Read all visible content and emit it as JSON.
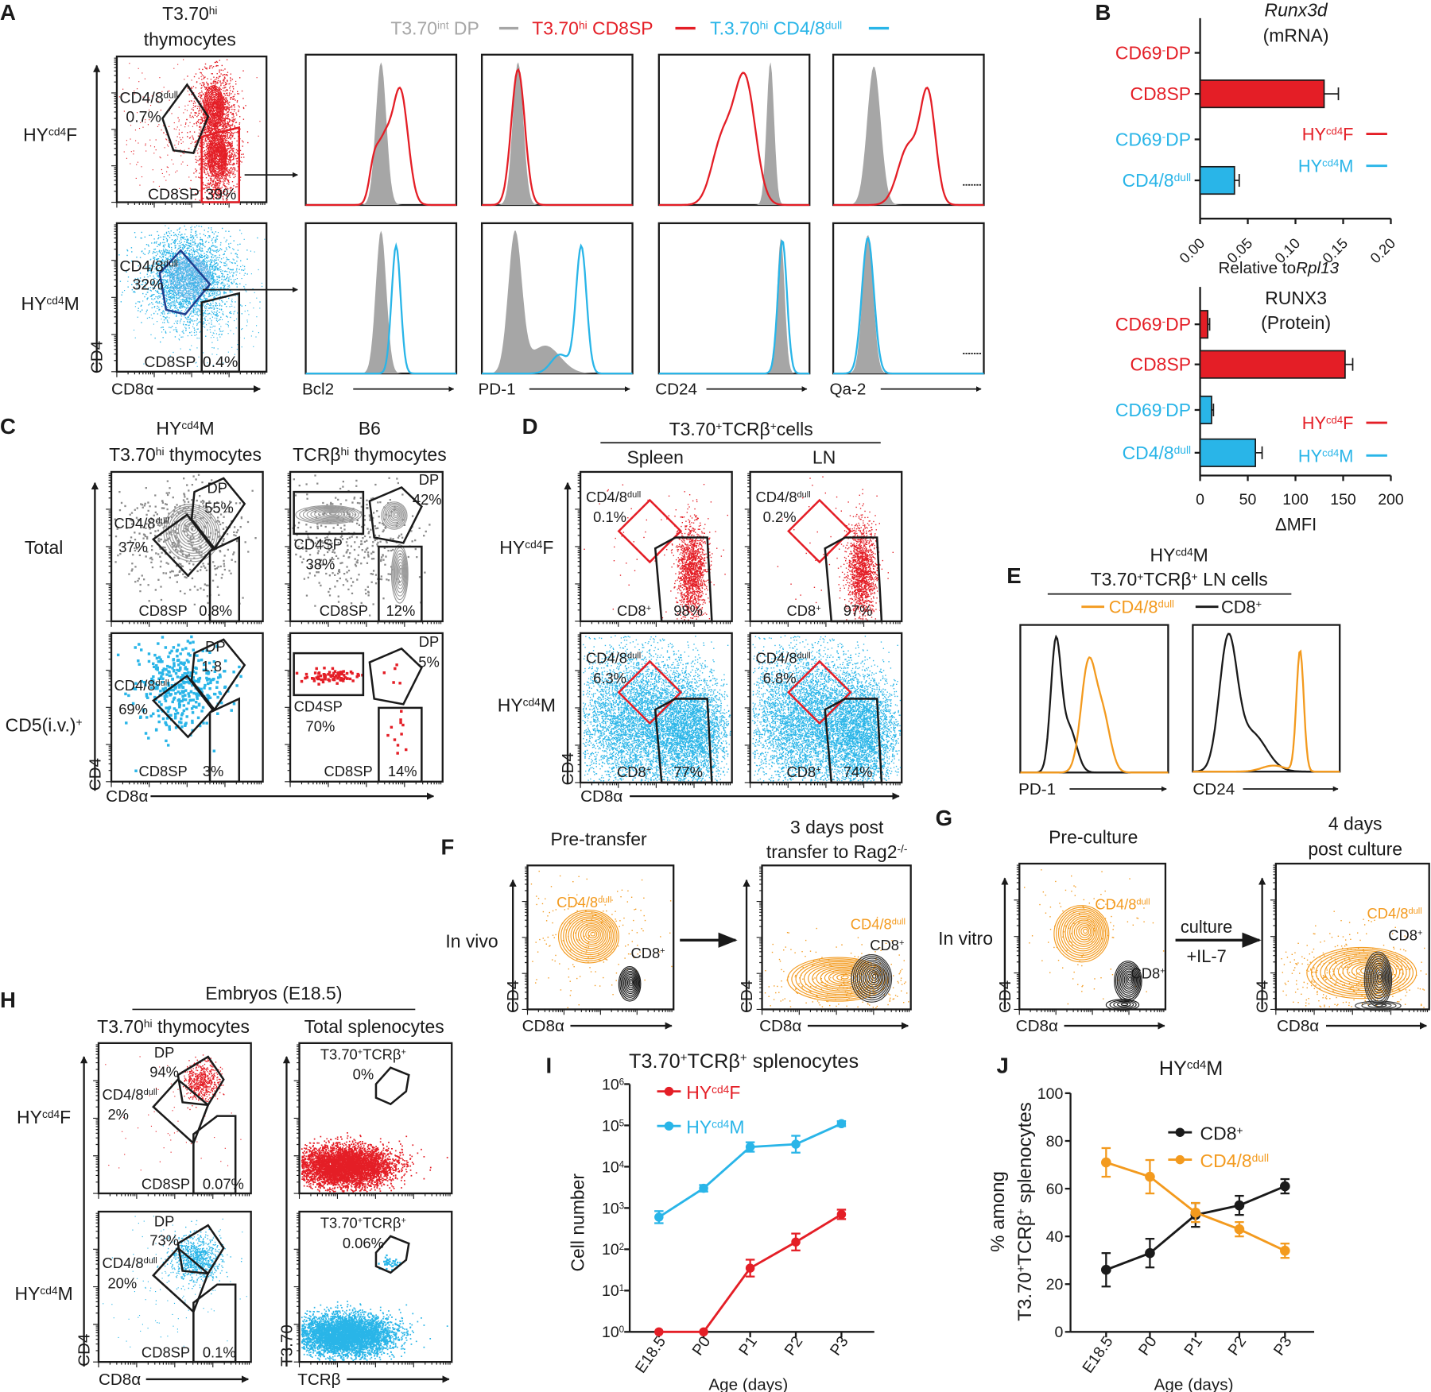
{
  "colors": {
    "red": "#e41e26",
    "cyan": "#29b5e8",
    "orange": "#f39a1e",
    "gray": "#a6a6a6",
    "black": "#1a1a1a",
    "navy": "#1f3f8f"
  },
  "figure": {
    "A": {
      "letter": "A",
      "title": [
        "T3.70",
        "hi"
      ],
      "title2": "thymocytes",
      "legend": [
        [
          "T3.70",
          "int",
          " DP"
        ],
        [
          "T3.70",
          "hi",
          " CD8SP"
        ],
        [
          "T.3.70",
          "hi",
          " CD4/8",
          "dull"
        ]
      ],
      "rows": [
        [
          "HY",
          "cd4",
          "F"
        ],
        [
          "HY",
          "cd4",
          "M"
        ]
      ],
      "gates_f": {
        "dull": [
          "CD4/8",
          "dull"
        ],
        "dull_pct": "0.7%",
        "sp": "CD8SP",
        "sp_pct": "39%"
      },
      "gates_m": {
        "dull": [
          "CD4/8",
          "dull"
        ],
        "dull_pct": "32%",
        "sp": "CD8SP",
        "sp_pct": "0.4%"
      },
      "y_axis": "CD4",
      "x_axis": "CD8α",
      "markers": [
        "Bcl2",
        "PD-1",
        "CD24",
        "Qa-2"
      ]
    },
    "B": {
      "letter": "B"
    },
    "C": {
      "letter": "C",
      "head1": [
        "HY",
        "cd4",
        "M"
      ],
      "head1b": [
        "T3.70",
        "hi",
        " thymocytes"
      ],
      "head2": "B6",
      "head2b": [
        "TCRβ",
        "hi",
        " thymocytes"
      ],
      "rows": [
        "Total",
        [
          "CD5(i.v.)",
          "+"
        ]
      ],
      "tl": {
        "dp": "DP",
        "dp_pct": "55%",
        "dull": [
          "CD4/8",
          "dull"
        ],
        "dull_pct": "37%",
        "sp": "CD8SP",
        "sp_pct": "0.8%"
      },
      "tr": {
        "dp": "DP",
        "dp_pct": "42%",
        "cd4": "CD4SP",
        "cd4_pct": "38%",
        "sp": "CD8SP",
        "sp_pct": "12%"
      },
      "bl": {
        "dp": "DP",
        "dp_pct": "1.8",
        "dull": [
          "CD4/8",
          "dull"
        ],
        "dull_pct": "69%",
        "sp": "CD8SP",
        "sp_pct": "3%"
      },
      "br": {
        "dp": "DP",
        "dp_pct": "5%",
        "cd4": "CD4SP",
        "cd4_pct": "70%",
        "sp": "CD8SP",
        "sp_pct": "14%"
      },
      "y_axis": "CD4",
      "x_axis": "CD8α"
    },
    "D": {
      "letter": "D",
      "head": [
        "T3.70",
        "+",
        "TCRβ",
        "+",
        "cells"
      ],
      "cols": [
        "Spleen",
        "LN"
      ],
      "rows": [
        [
          "HY",
          "cd4",
          "F"
        ],
        [
          "HY",
          "cd4",
          "M"
        ]
      ],
      "dull": [
        "CD4/8",
        "dull"
      ],
      "cd8": [
        "CD8",
        "+"
      ],
      "pcts": {
        "f_spleen_dull": "0.1%",
        "f_spleen_cd8": "98%",
        "f_ln_dull": "0.2%",
        "f_ln_cd8": "97%",
        "m_spleen_dull": "6.3%",
        "m_spleen_cd8": "77%",
        "m_ln_dull": "6.8%",
        "m_ln_cd8": "74%"
      },
      "y_axis": "CD4",
      "x_axis": "CD8α"
    },
    "E": {
      "letter": "E",
      "head": [
        "HY",
        "cd4",
        "M"
      ],
      "head2": [
        "T3.70",
        "+",
        "TCRβ",
        "+",
        " LN cells"
      ],
      "legend": [
        [
          "CD4/8",
          "dull"
        ],
        [
          "CD8",
          "+"
        ]
      ],
      "markers": [
        "PD-1",
        "CD24"
      ]
    },
    "F": {
      "letter": "F",
      "pre": "Pre-transfer",
      "post1": "3 days post",
      "post2": [
        "transfer to Rag2",
        "-/-"
      ],
      "row": "In vivo",
      "dull": [
        "CD4/8",
        "dull"
      ],
      "cd8": [
        "CD8",
        "+"
      ],
      "y_axis": "CD4",
      "x_axis": "CD8α"
    },
    "G": {
      "letter": "G",
      "pre": "Pre-culture",
      "post1": "4 days",
      "post2": "post culture",
      "row": "In vitro",
      "arrow1": "culture",
      "arrow2": "+IL-7",
      "dull": [
        "CD4/8",
        "dull"
      ],
      "cd8": [
        "CD8",
        "+"
      ],
      "y_axis": "CD4",
      "x_axis": "CD8α"
    },
    "H": {
      "letter": "H",
      "head": "Embryos (E18.5)",
      "col1": [
        "T3.70",
        "hi",
        " thymocytes"
      ],
      "col2": "Total splenocytes",
      "rows": [
        [
          "HY",
          "cd4",
          "F"
        ],
        [
          "HY",
          "cd4",
          "M"
        ]
      ],
      "f": {
        "dp": "DP",
        "dp_pct": "94%",
        "dull": [
          "CD4/8",
          "dull"
        ],
        "dull_pct": "2%",
        "sp": "CD8SP",
        "sp_pct": "0.07%",
        "gate": [
          "T3.70",
          "+",
          "TCRβ",
          "+"
        ],
        "gate_pct": "0%"
      },
      "m": {
        "dp": "DP",
        "dp_pct": "73%",
        "dull": [
          "CD4/8",
          "dull"
        ],
        "dull_pct": "20%",
        "sp": "CD8SP",
        "sp_pct": "0.1%",
        "gate": [
          "T3.70",
          "+",
          "TCRβ",
          "+"
        ],
        "gate_pct": "0.06%"
      },
      "y_axis": "CD4",
      "x_axis": "CD8α",
      "y_axis2": "T3.70",
      "x_axis2": "TCRβ"
    },
    "I": {
      "letter": "I"
    },
    "J": {
      "letter": "J"
    }
  },
  "chart_data": [
    {
      "id": "B-mRNA",
      "type": "bar",
      "orientation": "horizontal",
      "title": "Runx3d",
      "title2": "(mRNA)",
      "categories": [
        [
          "CD69",
          "-",
          "DP"
        ],
        "CD8SP",
        [
          "CD69",
          "-",
          "DP"
        ],
        [
          "CD4/8",
          "dull"
        ]
      ],
      "category_colors": [
        "#e41e26",
        "#e41e26",
        "#29b5e8",
        "#29b5e8"
      ],
      "values": [
        0.0,
        0.13,
        0.0,
        0.036
      ],
      "errors": [
        0.0,
        0.015,
        0.0,
        0.005
      ],
      "xlabel": "Relative to ",
      "xlabel_italic": "Rpl13",
      "xlim": [
        0,
        0.2
      ],
      "xticks": [
        "0.00",
        "0.05",
        "0.10",
        "0.15",
        "0.20"
      ],
      "legend": [
        {
          "label": [
            "HY",
            "cd4",
            "F"
          ],
          "color": "#e41e26"
        },
        {
          "label": [
            "HY",
            "cd4",
            "M"
          ],
          "color": "#29b5e8"
        }
      ]
    },
    {
      "id": "B-protein",
      "type": "bar",
      "orientation": "horizontal",
      "title": "RUNX3",
      "title2": "(Protein)",
      "categories": [
        [
          "CD69",
          "-",
          "DP"
        ],
        "CD8SP",
        [
          "CD69",
          "-",
          "DP"
        ],
        [
          "CD4/8",
          "dull"
        ]
      ],
      "category_colors": [
        "#e41e26",
        "#e41e26",
        "#29b5e8",
        "#29b5e8"
      ],
      "values": [
        8,
        152,
        12,
        58
      ],
      "errors": [
        2,
        8,
        2,
        7
      ],
      "xlabel": "ΔMFI",
      "xlim": [
        0,
        200
      ],
      "xticks": [
        "0",
        "50",
        "100",
        "150",
        "200"
      ],
      "legend": [
        {
          "label": [
            "HY",
            "cd4",
            "F"
          ],
          "color": "#e41e26"
        },
        {
          "label": [
            "HY",
            "cd4",
            "M"
          ],
          "color": "#29b5e8"
        }
      ]
    },
    {
      "id": "I",
      "type": "line",
      "yscale": "log",
      "title": [
        "T3.70",
        "+",
        "TCRβ",
        "+",
        " splenocytes"
      ],
      "categories": [
        "E18.5",
        "P0",
        "P1",
        "P2",
        "P3"
      ],
      "xlabel": "Age (days)",
      "ylabel": "Cell number",
      "ylim": [
        1,
        1000000
      ],
      "yticks": [
        [
          "10",
          "0"
        ],
        [
          "10",
          "1"
        ],
        [
          "10",
          "2"
        ],
        [
          "10",
          "3"
        ],
        [
          "10",
          "4"
        ],
        [
          "10",
          "5"
        ],
        [
          "10",
          "6"
        ]
      ],
      "series": [
        {
          "name": [
            "HY",
            "cd4",
            "F"
          ],
          "color": "#e41e26",
          "values": [
            1,
            1,
            35,
            150,
            700
          ],
          "err_factor": [
            1,
            1,
            1.6,
            1.6,
            1.3
          ]
        },
        {
          "name": [
            "HY",
            "cd4",
            "M"
          ],
          "color": "#29b5e8",
          "values": [
            600,
            3000,
            30000,
            35000,
            110000
          ],
          "err_factor": [
            1.4,
            1.2,
            1.3,
            1.6,
            1.15
          ]
        }
      ]
    },
    {
      "id": "J",
      "type": "line",
      "title": [
        "HY",
        "cd4",
        "M"
      ],
      "categories": [
        "E18.5",
        "P0",
        "P1",
        "P2",
        "P3"
      ],
      "xlabel": "Age (days)",
      "ylabel": "% among",
      "ylabel2": [
        "T3.70",
        "+",
        "TCRβ",
        "+",
        " splenocytes"
      ],
      "ylim": [
        0,
        100
      ],
      "yticks": [
        "0",
        "20",
        "40",
        "60",
        "80",
        "100"
      ],
      "series": [
        {
          "name": [
            "CD8",
            "+"
          ],
          "color": "#1a1a1a",
          "values": [
            26,
            33,
            49,
            53,
            61
          ],
          "errors": [
            7,
            6,
            5,
            4,
            3
          ]
        },
        {
          "name": [
            "CD4/8",
            "dull"
          ],
          "color": "#f39a1e",
          "values": [
            71,
            65,
            50,
            43,
            34
          ],
          "errors": [
            6,
            7,
            4,
            3,
            3
          ]
        }
      ]
    }
  ]
}
